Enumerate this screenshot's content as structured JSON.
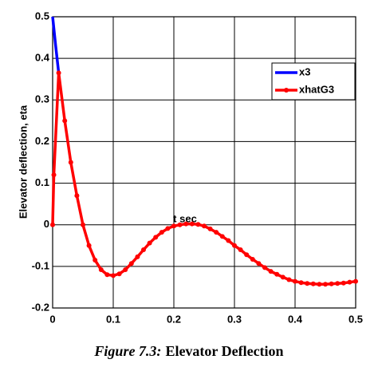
{
  "chart_data": {
    "type": "line",
    "caption_label": "Figure 7.3:",
    "caption": "Elevator Deflection",
    "x_label": "t sec",
    "y_label": "Elevator deflection, eta",
    "xlim": [
      0,
      0.5
    ],
    "ylim": [
      -0.2,
      0.5
    ],
    "xticks": [
      0,
      0.1,
      0.2,
      0.3,
      0.4,
      0.5
    ],
    "yticks": [
      0.5,
      0.4,
      0.3,
      0.2,
      0.1,
      0,
      -0.1,
      -0.2
    ],
    "grid": true,
    "legend": "upper right",
    "series": [
      {
        "name": "x3",
        "color": "#0000ff",
        "markers": false,
        "x": [
          0,
          0.005,
          0.01
        ],
        "values": [
          0.5,
          0.43,
          0.365
        ]
      },
      {
        "name": "xhatG3",
        "color": "#ff0000",
        "markers": true,
        "x": [
          0,
          0.002,
          0.01,
          0.02,
          0.03,
          0.04,
          0.05,
          0.06,
          0.07,
          0.08,
          0.09,
          0.1,
          0.11,
          0.12,
          0.13,
          0.14,
          0.15,
          0.16,
          0.17,
          0.18,
          0.19,
          0.2,
          0.21,
          0.22,
          0.23,
          0.24,
          0.25,
          0.26,
          0.27,
          0.28,
          0.29,
          0.3,
          0.31,
          0.32,
          0.33,
          0.34,
          0.35,
          0.36,
          0.37,
          0.38,
          0.39,
          0.4,
          0.41,
          0.42,
          0.43,
          0.44,
          0.45,
          0.46,
          0.47,
          0.48,
          0.49,
          0.5
        ],
        "values": [
          0,
          0.12,
          0.365,
          0.25,
          0.15,
          0.07,
          0.0,
          -0.05,
          -0.085,
          -0.108,
          -0.12,
          -0.122,
          -0.118,
          -0.108,
          -0.093,
          -0.077,
          -0.06,
          -0.044,
          -0.03,
          -0.018,
          -0.009,
          -0.003,
          0.0,
          0.002,
          0.002,
          0.001,
          -0.003,
          -0.01,
          -0.018,
          -0.028,
          -0.038,
          -0.05,
          -0.06,
          -0.072,
          -0.083,
          -0.093,
          -0.103,
          -0.112,
          -0.119,
          -0.126,
          -0.132,
          -0.136,
          -0.139,
          -0.141,
          -0.142,
          -0.143,
          -0.143,
          -0.142,
          -0.141,
          -0.14,
          -0.138,
          -0.136
        ]
      }
    ]
  }
}
